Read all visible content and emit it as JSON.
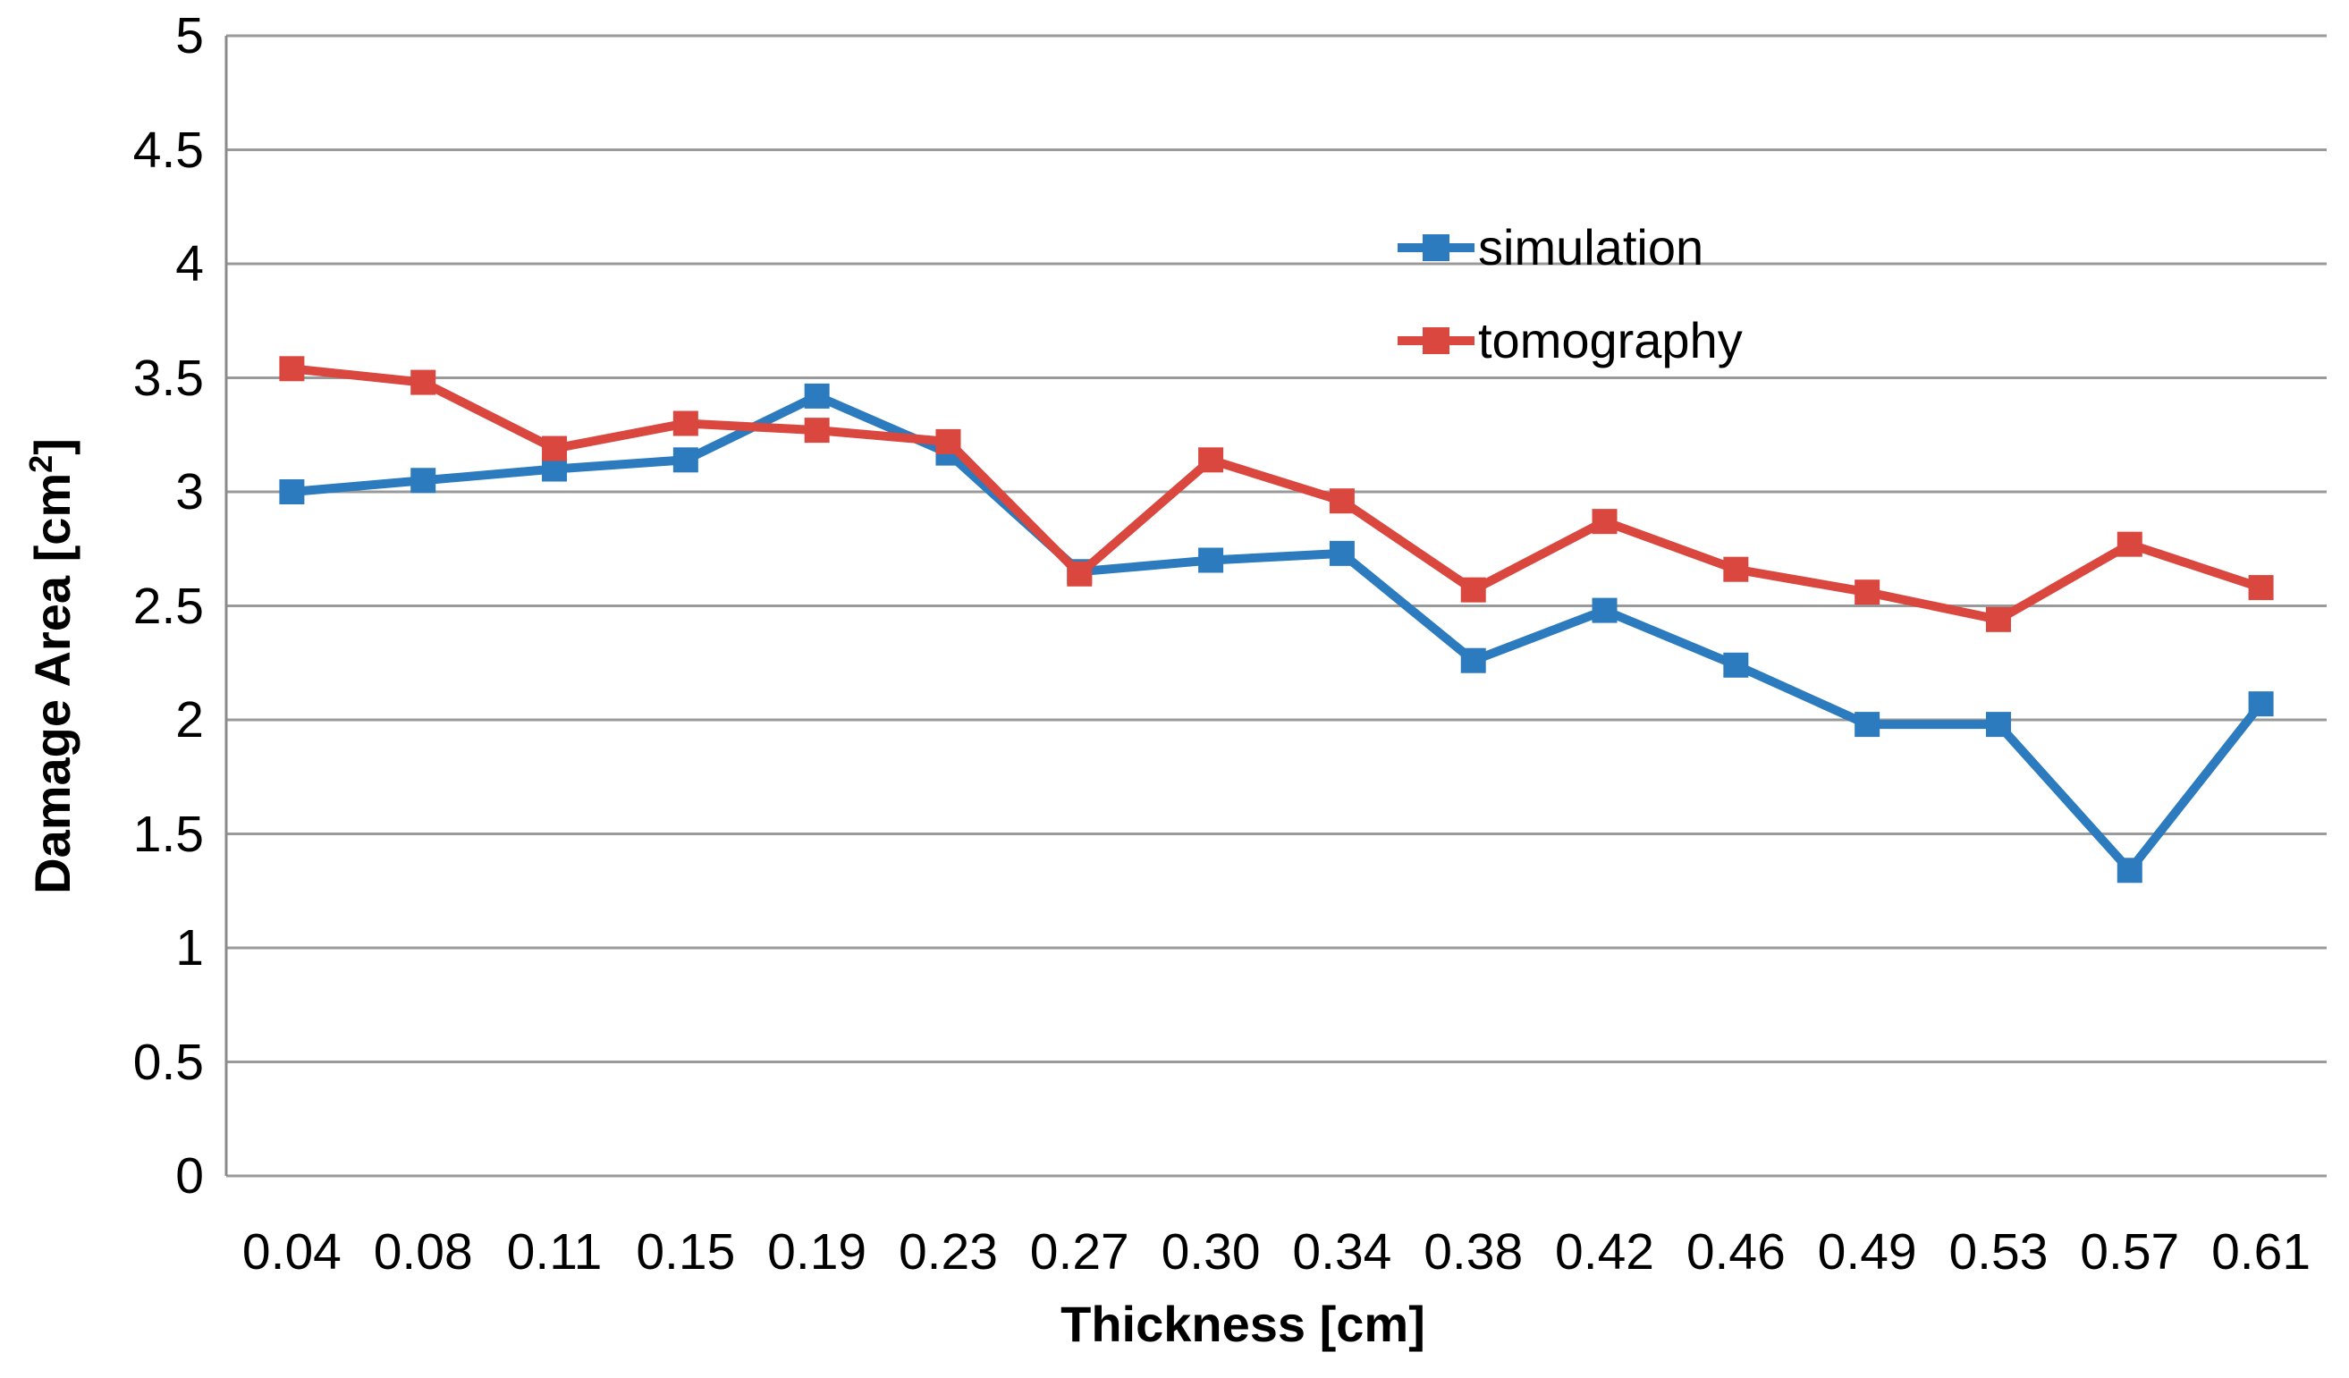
{
  "figure": {
    "background": "#ffffff",
    "axis_color": "#8a8a8a",
    "gridline_color": "#9a9a9a",
    "text_color": "#000000"
  },
  "chart_data": {
    "type": "line",
    "title": "",
    "xlabel": "Thickness [cm]",
    "ylabel": "Damage Area [cm2]",
    "ylabel_prefix": "Damage Area [cm",
    "ylabel_sup": "2",
    "ylabel_suffix": "]",
    "categories": [
      "0.04",
      "0.08",
      "0.11",
      "0.15",
      "0.19",
      "0.23",
      "0.27",
      "0.30",
      "0.34",
      "0.38",
      "0.42",
      "0.46",
      "0.49",
      "0.53",
      "0.57",
      "0.61"
    ],
    "series": [
      {
        "name": "simulation",
        "color": "#2b7bbe",
        "marker": "square",
        "values": [
          3.0,
          3.05,
          3.1,
          3.14,
          3.42,
          3.17,
          2.65,
          2.7,
          2.73,
          2.26,
          2.48,
          2.24,
          1.98,
          1.98,
          1.34,
          2.07
        ]
      },
      {
        "name": "tomography",
        "color": "#d9473f",
        "marker": "square",
        "values": [
          3.54,
          3.48,
          3.19,
          3.3,
          3.27,
          3.22,
          2.64,
          3.14,
          2.96,
          2.57,
          2.87,
          2.66,
          2.56,
          2.44,
          2.77,
          2.58
        ]
      }
    ],
    "ylim": [
      0,
      5
    ],
    "ytick_step": 0.5,
    "ytick_labels": [
      "0",
      "0.5",
      "1",
      "1.5",
      "2",
      "2.5",
      "3",
      "3.5",
      "4",
      "4.5",
      "5"
    ],
    "grid": true,
    "legend_position": "upper-right-inside"
  }
}
